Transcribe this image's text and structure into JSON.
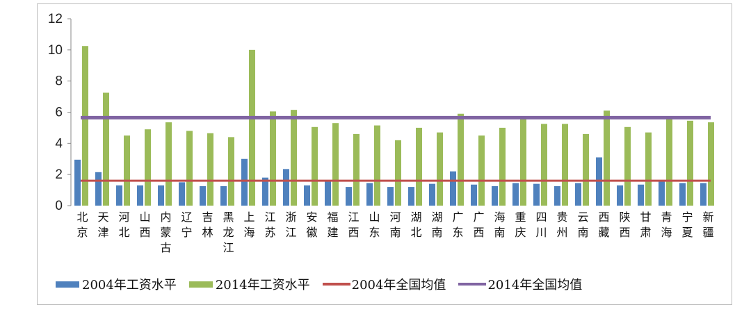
{
  "chart_data": {
    "type": "bar",
    "title": "",
    "xlabel": "",
    "ylabel": "",
    "ylim": [
      0,
      12
    ],
    "yticks": [
      "0",
      "2",
      "4",
      "6",
      "8",
      "10",
      "12"
    ],
    "categories": [
      "北京",
      "天津",
      "河北",
      "山西",
      "内蒙古",
      "辽宁",
      "吉林",
      "黑龙江",
      "上海",
      "江苏",
      "浙江",
      "安徽",
      "福建",
      "江西",
      "山东",
      "河南",
      "湖北",
      "湖南",
      "广东",
      "广西",
      "海南",
      "重庆",
      "四川",
      "贵州",
      "云南",
      "西藏",
      "陕西",
      "甘肃",
      "青海",
      "宁夏",
      "新疆"
    ],
    "series": [
      {
        "name": "2004年工资水平",
        "color": "#4f81bd",
        "values": [
          2.95,
          2.15,
          1.3,
          1.3,
          1.3,
          1.5,
          1.25,
          1.25,
          3.0,
          1.8,
          2.35,
          1.3,
          1.55,
          1.2,
          1.45,
          1.2,
          1.2,
          1.4,
          2.2,
          1.35,
          1.25,
          1.45,
          1.4,
          1.25,
          1.45,
          3.1,
          1.3,
          1.35,
          1.6,
          1.45,
          1.45
        ]
      },
      {
        "name": "2014年工资水平",
        "color": "#9bbb59",
        "values": [
          10.25,
          7.25,
          4.5,
          4.9,
          5.35,
          4.8,
          4.65,
          4.4,
          10.0,
          6.05,
          6.15,
          5.05,
          5.3,
          4.6,
          5.15,
          4.2,
          5.0,
          4.7,
          5.9,
          4.5,
          5.0,
          5.55,
          5.25,
          5.25,
          4.6,
          6.1,
          5.05,
          4.7,
          5.65,
          5.45,
          5.35
        ]
      }
    ],
    "reference_lines": [
      {
        "name": "2004年全国均值",
        "value": 1.6,
        "color": "#c0504d"
      },
      {
        "name": "2014年全国均值",
        "value": 5.65,
        "color": "#8064a2"
      }
    ],
    "legend_position": "bottom"
  }
}
